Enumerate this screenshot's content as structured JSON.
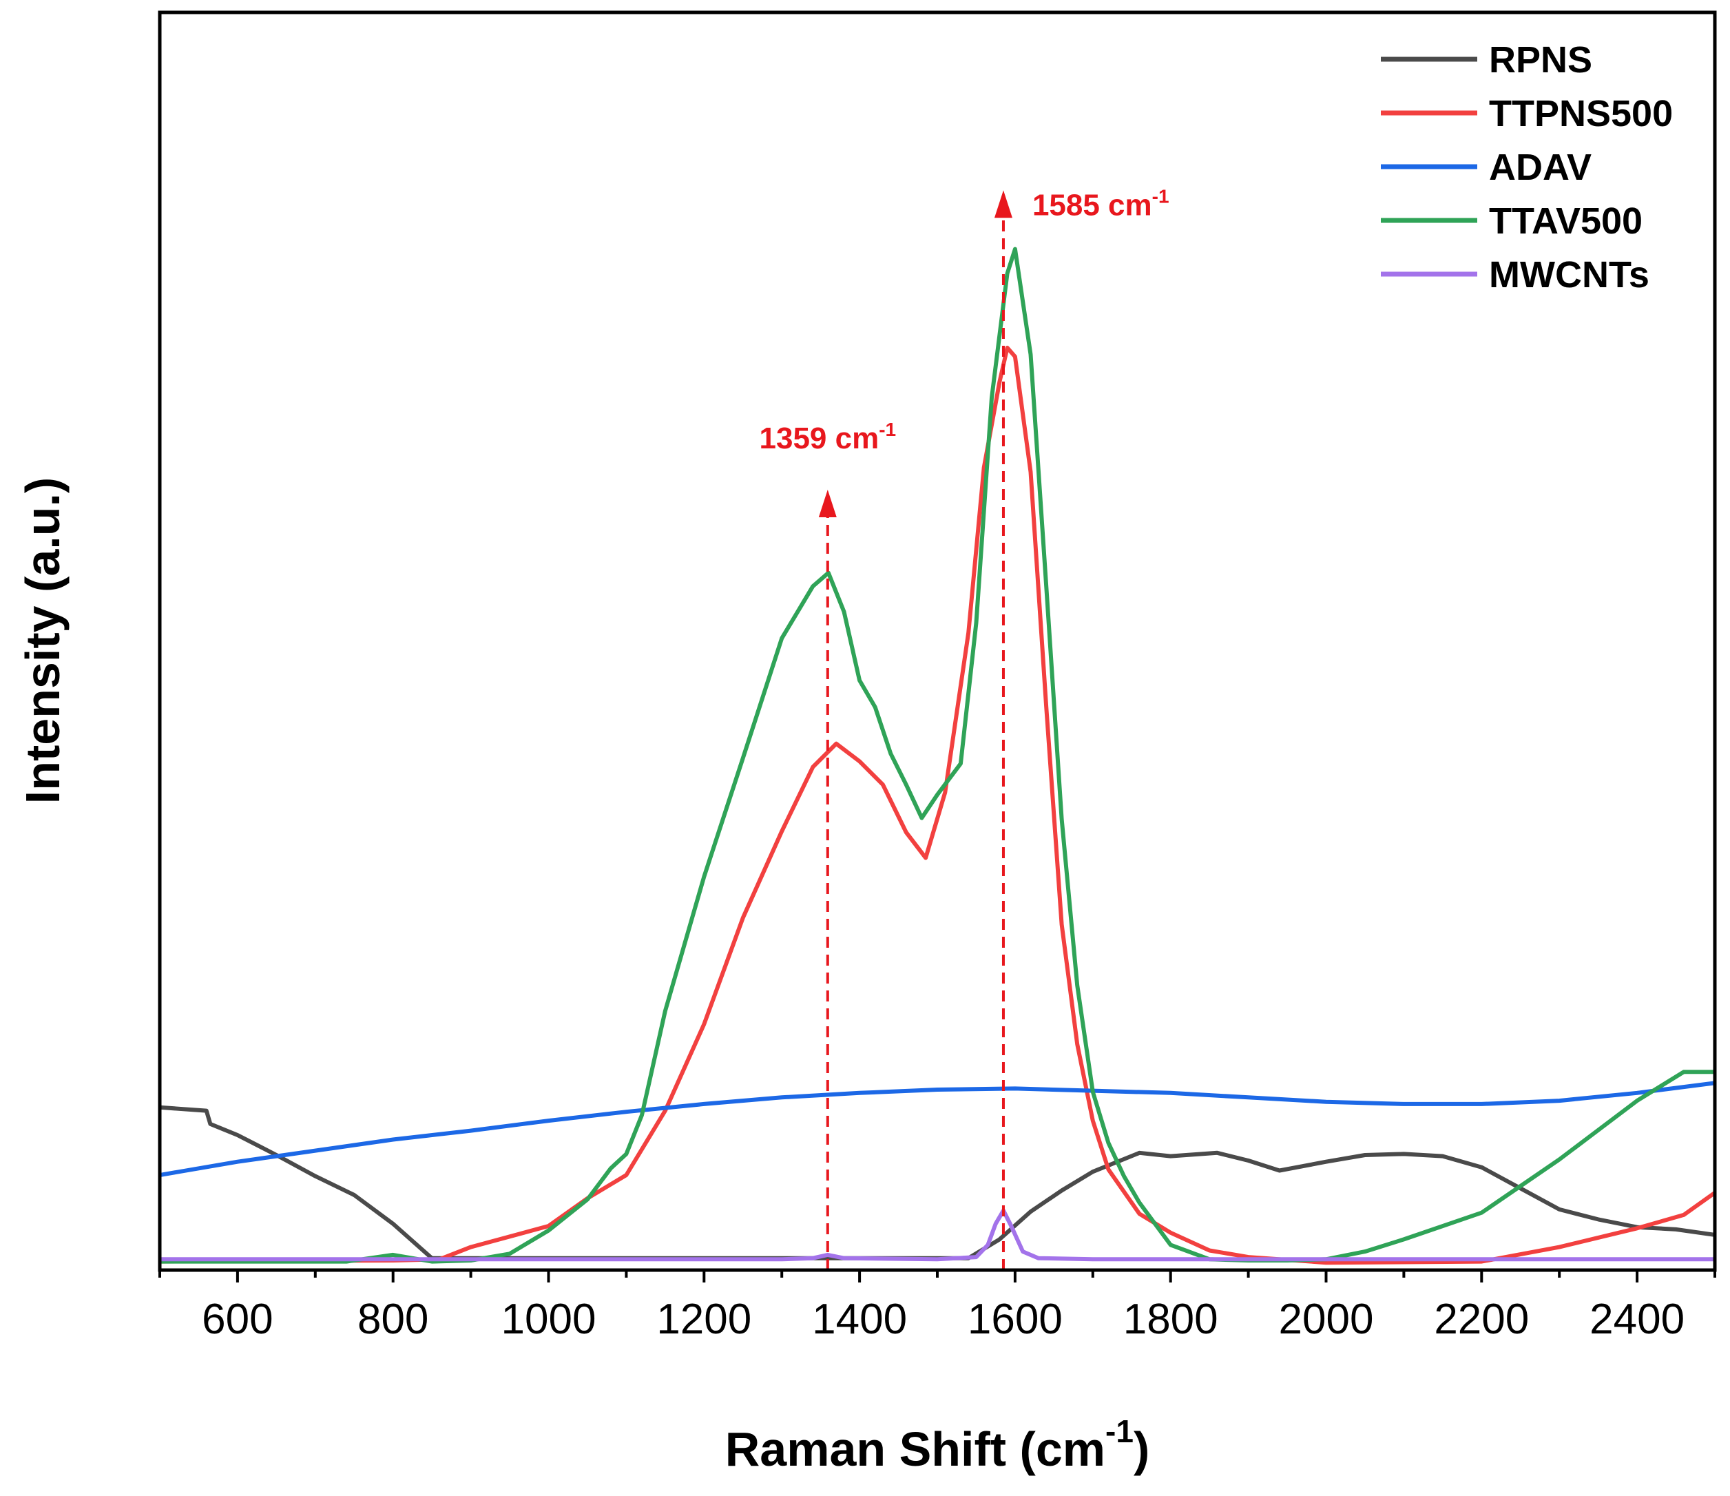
{
  "chart_data": {
    "type": "line",
    "title": "",
    "xlabel": "Raman Shift (cm",
    "xlabel_sup": "-1",
    "xlabel_close": ")",
    "ylabel": "Intensity (a.u.)",
    "xlim": [
      500,
      2500
    ],
    "ylim": [
      0,
      100
    ],
    "xticks": [
      600,
      800,
      1000,
      1200,
      1400,
      1600,
      1800,
      2000,
      2200,
      2400
    ],
    "yticks_shown": false,
    "legend_position": "top-right",
    "series": [
      {
        "name": "RPNS",
        "color": "#4a4a4a",
        "x": [
          500,
          560,
          565,
          600,
          650,
          700,
          750,
          800,
          850,
          900,
          1000,
          1100,
          1200,
          1300,
          1400,
          1500,
          1540,
          1580,
          1620,
          1660,
          1700,
          1760,
          1800,
          1860,
          1900,
          1940,
          2000,
          2050,
          2100,
          2150,
          2200,
          2250,
          2300,
          2350,
          2400,
          2450,
          2500
        ],
        "y": [
          14.3,
          14,
          12.8,
          11.8,
          10,
          8.1,
          6.4,
          3.8,
          0.7,
          0.7,
          0.7,
          0.7,
          0.7,
          0.7,
          0.7,
          0.7,
          0.7,
          2.4,
          4.9,
          6.8,
          8.5,
          10.2,
          9.9,
          10.2,
          9.5,
          8.6,
          9.4,
          10,
          10.1,
          9.9,
          8.9,
          7,
          5.1,
          4.2,
          3.5,
          3.3,
          2.8
        ]
      },
      {
        "name": "TTPNS500",
        "color": "#f2403f",
        "x": [
          500,
          800,
          860,
          900,
          1000,
          1050,
          1100,
          1150,
          1200,
          1250,
          1300,
          1340,
          1370,
          1400,
          1430,
          1460,
          1485,
          1510,
          1540,
          1560,
          1580,
          1590,
          1600,
          1620,
          1640,
          1660,
          1680,
          1700,
          1720,
          1760,
          1800,
          1850,
          1900,
          2000,
          2200,
          2300,
          2400,
          2460,
          2500
        ],
        "y": [
          0.4,
          0.5,
          0.6,
          1.7,
          3.6,
          6.1,
          8.2,
          14,
          21.8,
          31.4,
          39.2,
          45,
          47.1,
          45.5,
          43.4,
          39.1,
          36.8,
          42.7,
          57.1,
          72,
          79.7,
          82.8,
          82,
          71.6,
          50.5,
          30.8,
          20,
          13.1,
          8.7,
          4.7,
          3,
          1.4,
          0.8,
          0.3,
          0.4,
          1.7,
          3.4,
          4.6,
          6.6
        ]
      },
      {
        "name": "ADAV",
        "color": "#1c68e6",
        "x": [
          500,
          600,
          700,
          800,
          900,
          1000,
          1100,
          1200,
          1300,
          1400,
          1500,
          1600,
          1700,
          1800,
          1900,
          2000,
          2100,
          2200,
          2300,
          2400,
          2500
        ],
        "y": [
          8.2,
          9.4,
          10.4,
          11.4,
          12.2,
          13.1,
          13.9,
          14.6,
          15.2,
          15.6,
          15.9,
          16,
          15.8,
          15.6,
          15.2,
          14.8,
          14.6,
          14.6,
          14.9,
          15.6,
          16.5
        ]
      },
      {
        "name": "TTAV500",
        "color": "#2fa357",
        "x": [
          500,
          740,
          800,
          850,
          900,
          950,
          1000,
          1050,
          1080,
          1100,
          1120,
          1150,
          1200,
          1250,
          1300,
          1340,
          1360,
          1380,
          1400,
          1420,
          1440,
          1460,
          1480,
          1500,
          1530,
          1550,
          1570,
          1590,
          1600,
          1620,
          1640,
          1660,
          1680,
          1700,
          1720,
          1740,
          1760,
          1800,
          1850,
          1900,
          1950,
          2000,
          2050,
          2100,
          2200,
          2300,
          2400,
          2460,
          2500
        ],
        "y": [
          0.4,
          0.4,
          1,
          0.4,
          0.5,
          1.1,
          3.2,
          6,
          8.8,
          10.1,
          13.6,
          23,
          35.1,
          45.8,
          56.6,
          61.3,
          62.5,
          59,
          52.8,
          50.4,
          46.2,
          43.4,
          40.4,
          42.5,
          45.3,
          58,
          78.3,
          89.5,
          91.7,
          82.2,
          61.4,
          40.3,
          25.3,
          15.7,
          11.1,
          8.1,
          5.7,
          1.9,
          0.6,
          0.5,
          0.5,
          0.6,
          1.3,
          2.4,
          4.8,
          9.6,
          14.9,
          17.5,
          17.5
        ]
      },
      {
        "name": "MWCNTs",
        "color": "#a373ea",
        "x": [
          500,
          1300,
          1340,
          1359,
          1380,
          1500,
          1550,
          1565,
          1575,
          1585,
          1595,
          1610,
          1630,
          1700,
          2500
        ],
        "y": [
          0.6,
          0.6,
          0.7,
          1,
          0.7,
          0.6,
          0.8,
          1.9,
          3.8,
          5,
          3.6,
          1.3,
          0.7,
          0.6,
          0.6
        ]
      }
    ],
    "annotations": [
      {
        "x": 1359,
        "y_top": 70,
        "text": "1359 cm",
        "sup": "-1",
        "color": "#e8171d"
      },
      {
        "x": 1585,
        "y_top": 97,
        "text": "1585 cm",
        "sup": "-1",
        "color": "#e8171d"
      }
    ]
  }
}
